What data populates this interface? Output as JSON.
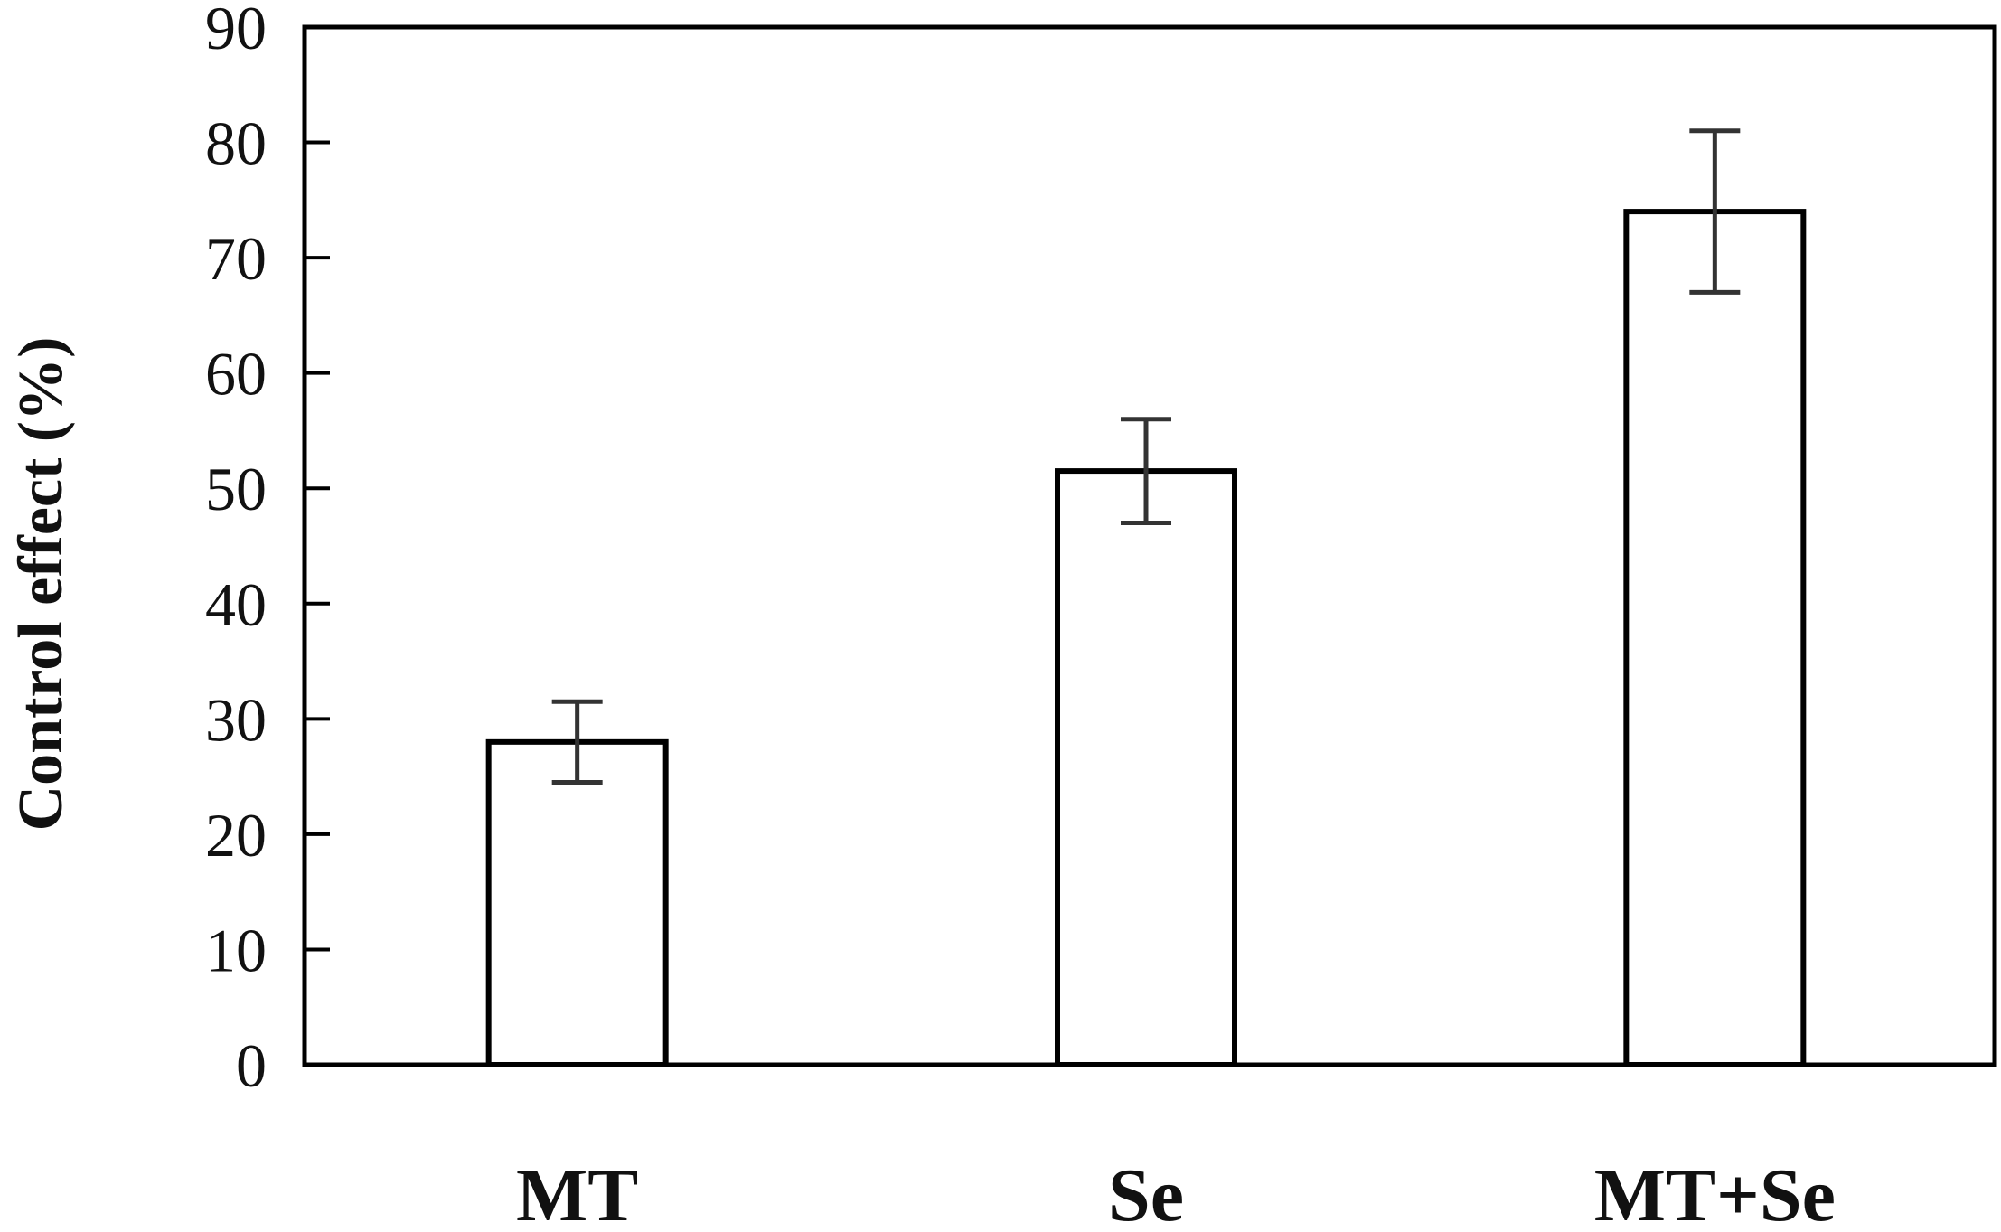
{
  "chart_data": {
    "type": "bar",
    "title": "",
    "xlabel": "",
    "ylabel": "Control effect (%)",
    "categories": [
      "MT",
      "Se",
      "MT+Se"
    ],
    "values": [
      28,
      51.5,
      74
    ],
    "error_low": [
      24.5,
      47,
      67
    ],
    "error_high": [
      31.5,
      56,
      81
    ],
    "ylim": [
      0,
      90
    ],
    "yticks": [
      0,
      10,
      20,
      30,
      40,
      50,
      60,
      70,
      80,
      90
    ],
    "grid": false,
    "legend": "none",
    "bar_fill": "#ffffff",
    "stroke_color": "#000000"
  }
}
